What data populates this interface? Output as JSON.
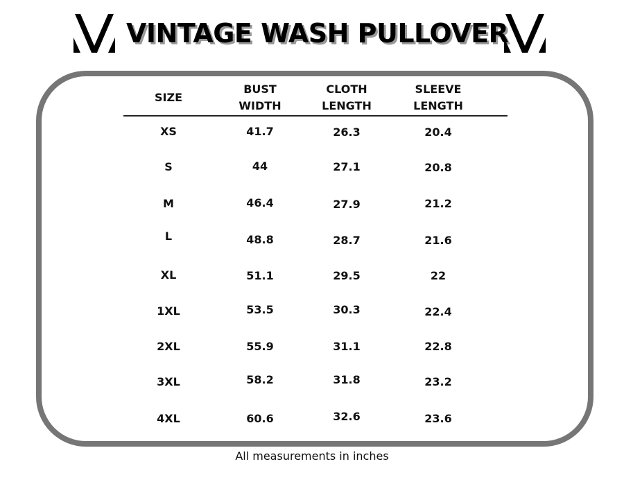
{
  "title": "VINTAGE WASH PULLOVER",
  "logo_icon": "v-monogram-logo",
  "headers": [
    {
      "line1": "SIZE",
      "line2": ""
    },
    {
      "line1": "BUST",
      "line2": "WIDTH"
    },
    {
      "line1": "CLOTH",
      "line2": "LENGTH"
    },
    {
      "line1": "SLEEVE",
      "line2": "LENGTH"
    }
  ],
  "rows": [
    [
      "XS",
      "41.7",
      "26.3",
      "20.4"
    ],
    [
      "S",
      "44",
      "27.1",
      "20.8"
    ],
    [
      "M",
      "46.4",
      "27.9",
      "21.2"
    ],
    [
      "L",
      "48.8",
      "28.7",
      "21.6"
    ],
    [
      "XL",
      "51.1",
      "29.5",
      "22"
    ],
    [
      "1XL",
      "53.5",
      "30.3",
      "22.4"
    ],
    [
      "2XL",
      "55.9",
      "31.1",
      "22.8"
    ],
    [
      "3XL",
      "58.2",
      "31.8",
      "23.2"
    ],
    [
      "4XL",
      "60.6",
      "32.6",
      "23.6"
    ]
  ],
  "footnote": "All measurements in inches",
  "colors": {
    "frame": "#767676",
    "text": "#111111"
  }
}
